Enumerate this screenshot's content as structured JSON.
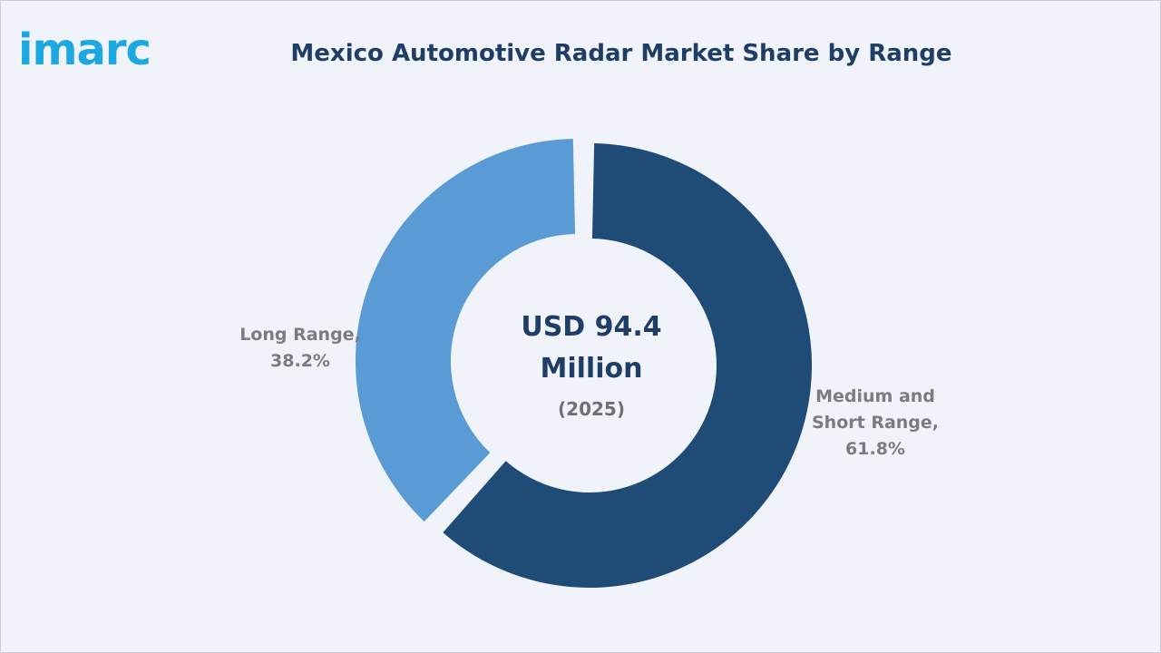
{
  "brand": {
    "logo_text": "imarc",
    "color": "#1ea8e0"
  },
  "chart_data": {
    "type": "pie",
    "title": "Mexico Automotive Radar Market Share by Range",
    "center_value": "USD 94.4 Million",
    "center_year": "(2025)",
    "slices": [
      {
        "label": "Medium and Short Range,",
        "value": 61.8,
        "value_label": "61.8%",
        "color": "#1f4b77"
      },
      {
        "label": "Long Range,",
        "value": 38.2,
        "value_label": "38.2%",
        "color": "#5b9bd5"
      }
    ]
  }
}
